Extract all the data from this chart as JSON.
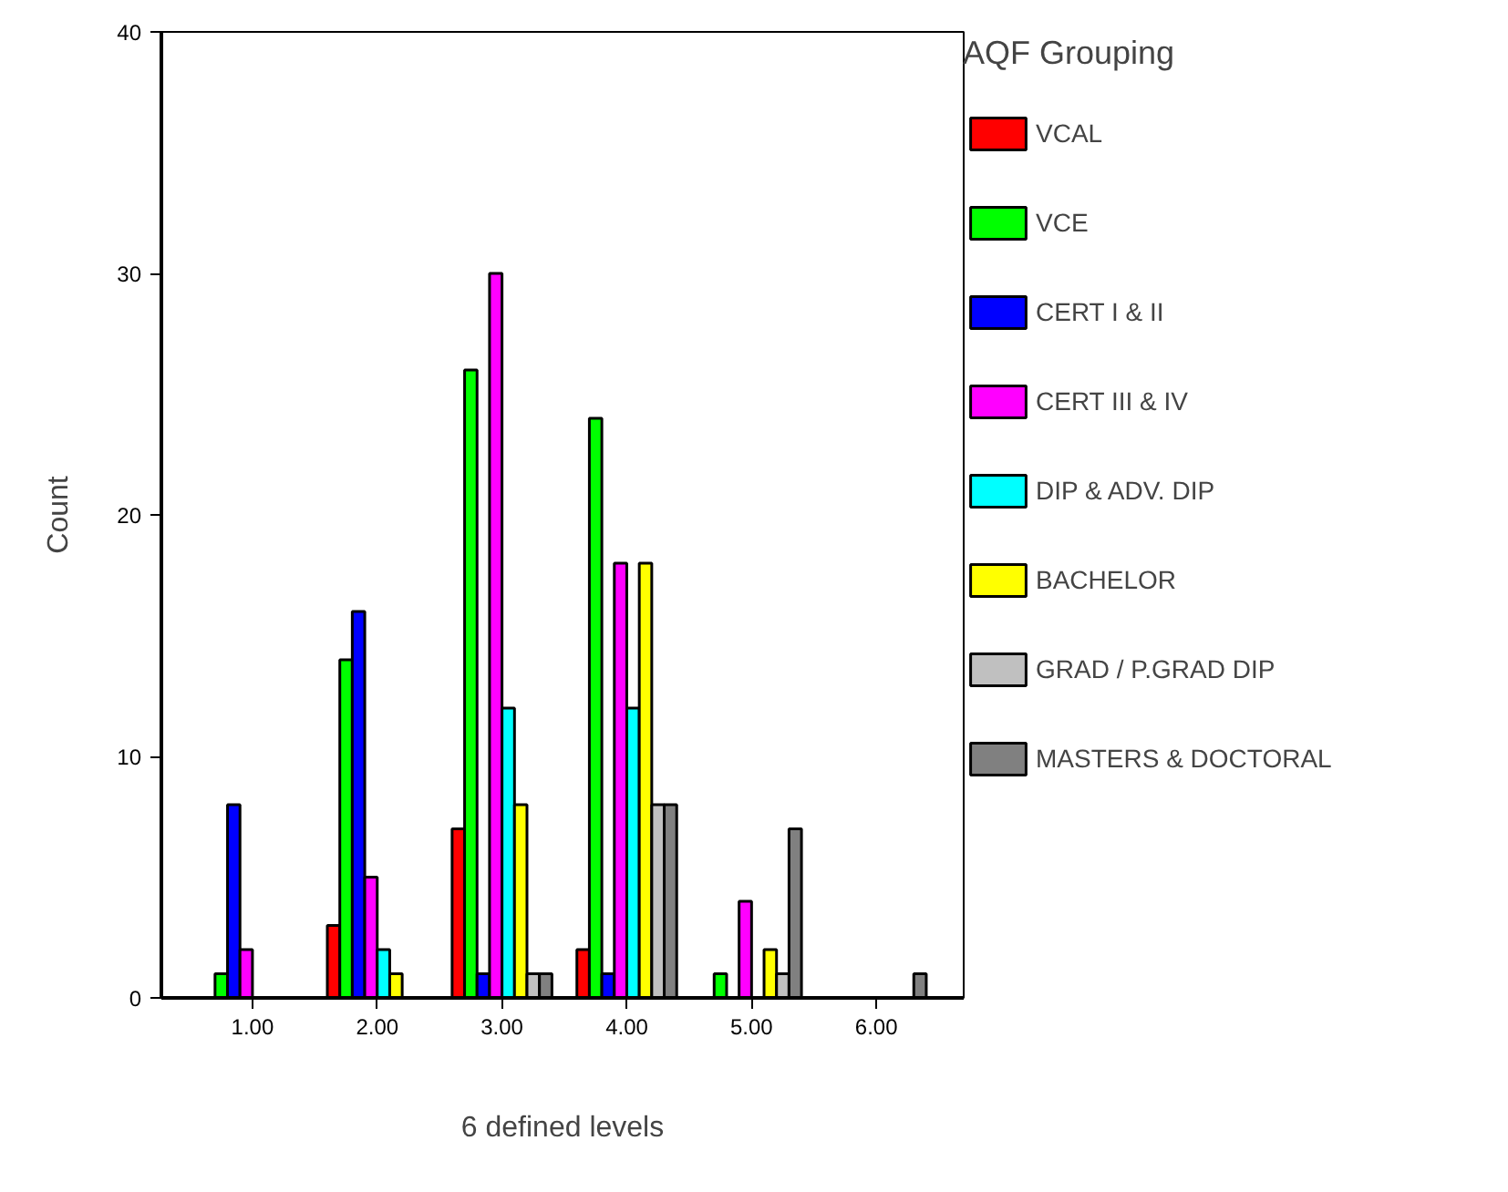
{
  "chart_data": {
    "type": "bar",
    "xlabel": "6 defined levels",
    "ylabel": "Count",
    "legend_title": "AQF Grouping",
    "legend": "right",
    "categories": [
      "1.00",
      "2.00",
      "3.00",
      "4.00",
      "5.00",
      "6.00"
    ],
    "ylim": [
      0,
      40
    ],
    "yticks": [
      0,
      10,
      20,
      30,
      40
    ],
    "grid": false,
    "series": [
      {
        "name": "VCAL",
        "color": "#ff0000",
        "values": [
          0,
          3,
          7,
          2,
          0,
          0
        ]
      },
      {
        "name": "VCE",
        "color": "#00ff00",
        "values": [
          1,
          14,
          26,
          24,
          1,
          0
        ]
      },
      {
        "name": "CERT I & II",
        "color": "#0000ff",
        "values": [
          8,
          16,
          1,
          1,
          0,
          0
        ]
      },
      {
        "name": "CERT III & IV",
        "color": "#ff00ff",
        "values": [
          2,
          5,
          30,
          18,
          4,
          0
        ]
      },
      {
        "name": "DIP & ADV. DIP",
        "color": "#00ffff",
        "values": [
          0,
          2,
          12,
          12,
          0,
          0
        ]
      },
      {
        "name": "BACHELOR",
        "color": "#ffff00",
        "values": [
          0,
          1,
          8,
          18,
          2,
          0
        ]
      },
      {
        "name": "GRAD / P.GRAD DIP",
        "color": "#c0c0c0",
        "values": [
          0,
          0,
          1,
          8,
          1,
          0
        ]
      },
      {
        "name": "MASTERS & DOCTORAL",
        "color": "#808080",
        "values": [
          0,
          0,
          1,
          8,
          7,
          1
        ]
      }
    ]
  }
}
